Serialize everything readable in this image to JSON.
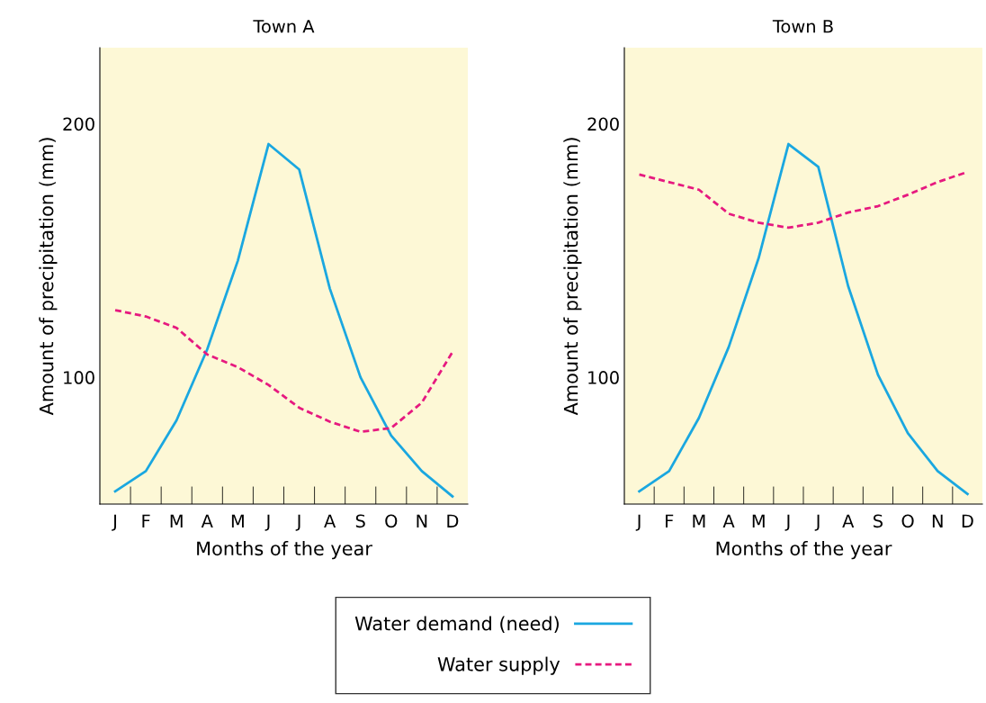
{
  "chart_data": [
    {
      "type": "line",
      "title": "Town A",
      "xlabel": "Months of the year",
      "ylabel": "Amount of precipitation (mm)",
      "ylim": [
        50,
        230
      ],
      "yticks": [
        100,
        200
      ],
      "categories": [
        "J",
        "F",
        "M",
        "A",
        "M",
        "J",
        "J",
        "A",
        "S",
        "O",
        "N",
        "D"
      ],
      "grid": false,
      "legend": "bottom",
      "marker": "none",
      "series": [
        {
          "name": "Water demand (need)",
          "color": "#1aa7e0",
          "line_style": "solid",
          "values": [
            55,
            63,
            83,
            111,
            146,
            192,
            182,
            135,
            100,
            77,
            63,
            53
          ]
        },
        {
          "name": "Water supply",
          "color": "#e6197f",
          "line_style": "dashed",
          "values": [
            126.5,
            124,
            119.5,
            109,
            104,
            97,
            88,
            82.5,
            78.5,
            80,
            90,
            110
          ]
        }
      ]
    },
    {
      "type": "line",
      "title": "Town B",
      "xlabel": "Months of the year",
      "ylabel": "Amount of precipitation (mm)",
      "ylim": [
        50,
        230
      ],
      "yticks": [
        100,
        200
      ],
      "categories": [
        "J",
        "F",
        "M",
        "A",
        "M",
        "J",
        "J",
        "A",
        "S",
        "O",
        "N",
        "D"
      ],
      "grid": false,
      "marker": "none",
      "series": [
        {
          "color": "#1aa7e0",
          "line_style": "solid",
          "values": [
            55,
            63,
            84,
            112,
            147,
            192,
            183,
            136,
            101,
            78,
            63,
            54
          ]
        },
        {
          "color": "#e6197f",
          "line_style": "dashed",
          "values": [
            180,
            177,
            174,
            164.5,
            161,
            159,
            161,
            165,
            167.5,
            172,
            177,
            181
          ]
        }
      ]
    }
  ]
}
